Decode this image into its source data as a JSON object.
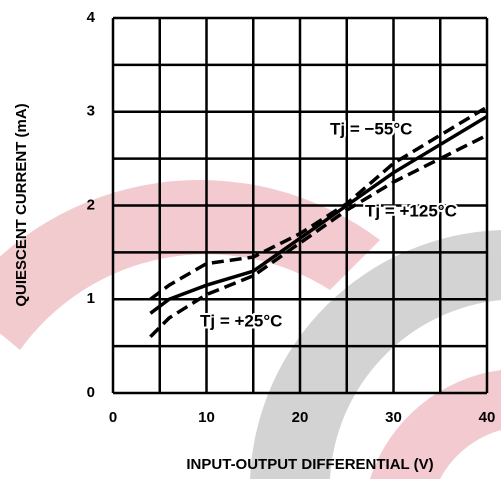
{
  "chart_data": {
    "type": "line",
    "xlabel": "INPUT-OUTPUT DIFFERENTIAL (V)",
    "ylabel": "QUIESCENT CURRENT (mA)",
    "xlim": [
      0,
      40
    ],
    "ylim": [
      0,
      4
    ],
    "xticks": [
      0,
      10,
      20,
      30,
      40
    ],
    "yticks": [
      0,
      1,
      2,
      3,
      4
    ],
    "x_gridlines": [
      0,
      5,
      10,
      15,
      20,
      25,
      30,
      35,
      40
    ],
    "y_gridlines": [
      0,
      0.5,
      1,
      1.5,
      2,
      2.5,
      3,
      3.5,
      4
    ],
    "x": [
      4,
      6,
      10,
      15,
      20,
      25,
      30,
      35,
      40
    ],
    "series": [
      {
        "name": "Tj = −55°C",
        "color": "#000000",
        "dashed": true,
        "values": [
          1.0,
          1.15,
          1.38,
          1.45,
          1.7,
          2.02,
          2.45,
          2.75,
          3.05
        ]
      },
      {
        "name": "Tj = +25°C",
        "color": "#000000",
        "dashed": false,
        "values": [
          0.85,
          1.0,
          1.15,
          1.3,
          1.65,
          2.0,
          2.35,
          2.65,
          2.95
        ]
      },
      {
        "name": "Tj = +125°C",
        "color": "#000000",
        "dashed": true,
        "values": [
          0.6,
          0.8,
          1.05,
          1.25,
          1.6,
          1.95,
          2.25,
          2.5,
          2.75
        ]
      }
    ]
  }
}
